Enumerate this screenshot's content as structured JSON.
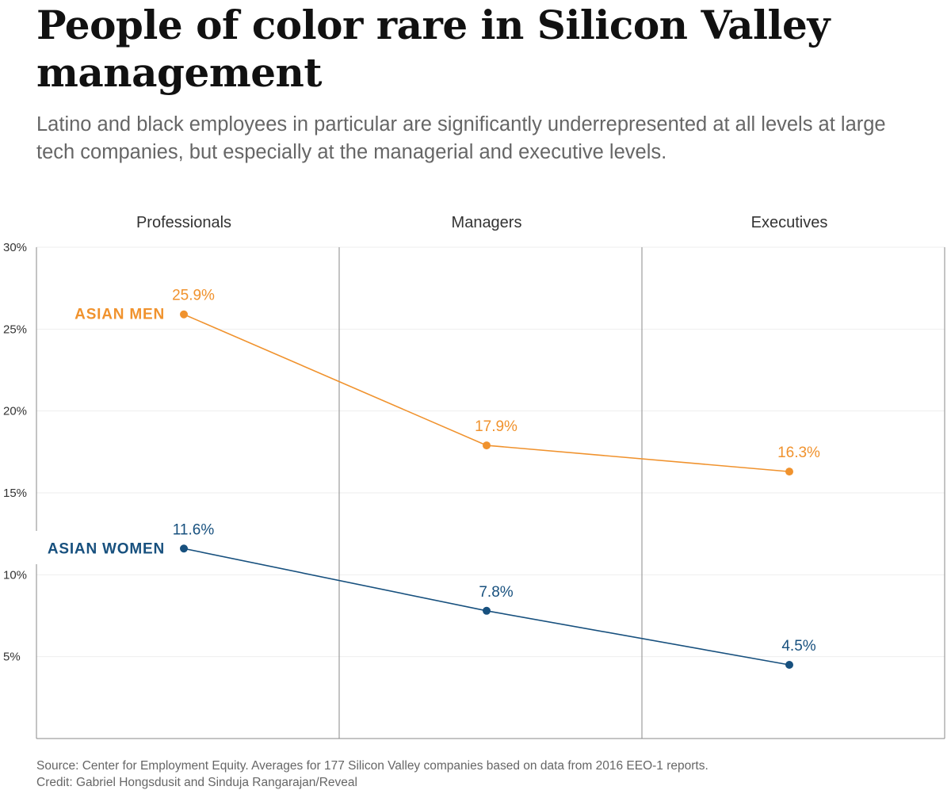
{
  "title": "People of color rare in Silicon Valley management",
  "subtitle": "Latino and black employees in particular are significantly underrepresented at all levels at large tech companies, but especially at the managerial and executive levels.",
  "source": "Source: Center for Employment Equity. Averages for 177 Silicon Valley companies based on data from 2016 EEO-1 reports.",
  "credit": "Credit: Gabriel Hongsdusit and Sinduja Rangarajan/Reveal",
  "colors": {
    "asian_men": "#f0922d",
    "asian_women": "#17507e",
    "axis": "#8a8a8a",
    "grid": "#eeeeee",
    "text": "#333333"
  },
  "chart_data": {
    "type": "line",
    "categories": [
      "Professionals",
      "Managers",
      "Executives"
    ],
    "series": [
      {
        "name": "ASIAN MEN",
        "values": [
          25.9,
          17.9,
          16.3
        ],
        "labels": [
          "25.9%",
          "17.9%",
          "16.3%"
        ],
        "color": "#f0922d"
      },
      {
        "name": "ASIAN WOMEN",
        "values": [
          11.6,
          7.8,
          4.5
        ],
        "labels": [
          "11.6%",
          "7.8%",
          "4.5%"
        ],
        "color": "#17507e"
      }
    ],
    "yticks": [
      5,
      10,
      15,
      20,
      25,
      30
    ],
    "ytick_labels": [
      "5%",
      "10%",
      "15%",
      "20%",
      "25%",
      "30%"
    ],
    "ylim": [
      0,
      30
    ],
    "grid": true,
    "legend": "inline labels at left of each line"
  }
}
